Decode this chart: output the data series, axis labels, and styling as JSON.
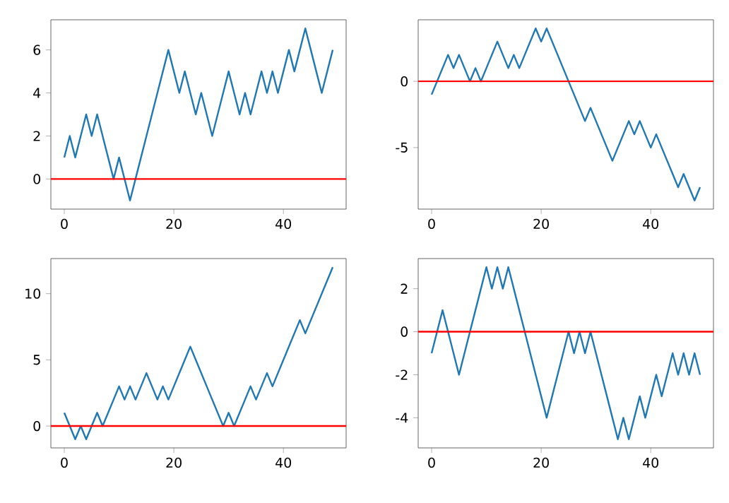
{
  "chart_data": [
    {
      "type": "line",
      "x": [
        0,
        1,
        2,
        3,
        4,
        5,
        6,
        7,
        8,
        9,
        10,
        11,
        12,
        13,
        14,
        15,
        16,
        17,
        18,
        19,
        20,
        21,
        22,
        23,
        24,
        25,
        26,
        27,
        28,
        29,
        30,
        31,
        32,
        33,
        34,
        35,
        36,
        37,
        38,
        39,
        40,
        41,
        42,
        43,
        44,
        45,
        46,
        47,
        48,
        49
      ],
      "xlim": [
        -2.45,
        51.45
      ],
      "xticks": [
        0,
        20,
        40
      ],
      "ylim": [
        -1.4,
        7.4
      ],
      "yticks": [
        0,
        2,
        4,
        6
      ],
      "series": [
        {
          "color": "#1f77b4",
          "values": [
            1,
            2,
            1,
            2,
            3,
            2,
            3,
            2,
            1,
            0,
            1,
            0,
            -1,
            0,
            1,
            2,
            3,
            4,
            5,
            6,
            5,
            4,
            5,
            4,
            3,
            4,
            3,
            2,
            3,
            4,
            5,
            4,
            3,
            4,
            3,
            4,
            5,
            4,
            5,
            4,
            5,
            6,
            5,
            6,
            7,
            6,
            5,
            4,
            5,
            6
          ]
        }
      ],
      "ref_lines": [
        {
          "axis": "y",
          "value": 0,
          "color": "#ff0000"
        }
      ]
    },
    {
      "type": "line",
      "x": [
        0,
        1,
        2,
        3,
        4,
        5,
        6,
        7,
        8,
        9,
        10,
        11,
        12,
        13,
        14,
        15,
        16,
        17,
        18,
        19,
        20,
        21,
        22,
        23,
        24,
        25,
        26,
        27,
        28,
        29,
        30,
        31,
        32,
        33,
        34,
        35,
        36,
        37,
        38,
        39,
        40,
        41,
        42,
        43,
        44,
        45,
        46,
        47,
        48,
        49
      ],
      "xlim": [
        -2.45,
        51.45
      ],
      "xticks": [
        0,
        20,
        40
      ],
      "ylim": [
        -9.65,
        4.65
      ],
      "yticks": [
        -5,
        0
      ],
      "series": [
        {
          "color": "#1f77b4",
          "values": [
            -1,
            0,
            1,
            2,
            1,
            2,
            1,
            0,
            1,
            0,
            1,
            2,
            3,
            2,
            1,
            2,
            1,
            2,
            3,
            4,
            3,
            4,
            3,
            2,
            1,
            0,
            -1,
            -2,
            -3,
            -2,
            -3,
            -4,
            -5,
            -6,
            -5,
            -4,
            -3,
            -4,
            -3,
            -4,
            -5,
            -4,
            -5,
            -6,
            -7,
            -8,
            -7,
            -8,
            -9,
            -8
          ]
        }
      ],
      "ref_lines": [
        {
          "axis": "y",
          "value": 0,
          "color": "#ff0000"
        }
      ]
    },
    {
      "type": "line",
      "x": [
        0,
        1,
        2,
        3,
        4,
        5,
        6,
        7,
        8,
        9,
        10,
        11,
        12,
        13,
        14,
        15,
        16,
        17,
        18,
        19,
        20,
        21,
        22,
        23,
        24,
        25,
        26,
        27,
        28,
        29,
        30,
        31,
        32,
        33,
        34,
        35,
        36,
        37,
        38,
        39,
        40,
        41,
        42,
        43,
        44,
        45,
        46,
        47,
        48,
        49
      ],
      "xlim": [
        -2.45,
        51.45
      ],
      "xticks": [
        0,
        20,
        40
      ],
      "ylim": [
        -1.65,
        12.65
      ],
      "yticks": [
        0,
        5,
        10
      ],
      "series": [
        {
          "color": "#1f77b4",
          "values": [
            1,
            0,
            -1,
            0,
            -1,
            0,
            1,
            0,
            1,
            2,
            3,
            2,
            3,
            2,
            3,
            4,
            3,
            2,
            3,
            2,
            3,
            4,
            5,
            6,
            5,
            4,
            3,
            2,
            1,
            0,
            1,
            0,
            1,
            2,
            3,
            2,
            3,
            4,
            3,
            4,
            5,
            6,
            7,
            8,
            7,
            8,
            9,
            10,
            11,
            12
          ]
        }
      ],
      "ref_lines": [
        {
          "axis": "y",
          "value": 0,
          "color": "#ff0000"
        }
      ]
    },
    {
      "type": "line",
      "x": [
        0,
        1,
        2,
        3,
        4,
        5,
        6,
        7,
        8,
        9,
        10,
        11,
        12,
        13,
        14,
        15,
        16,
        17,
        18,
        19,
        20,
        21,
        22,
        23,
        24,
        25,
        26,
        27,
        28,
        29,
        30,
        31,
        32,
        33,
        34,
        35,
        36,
        37,
        38,
        39,
        40,
        41,
        42,
        43,
        44,
        45,
        46,
        47,
        48,
        49
      ],
      "xlim": [
        -2.45,
        51.45
      ],
      "xticks": [
        0,
        20,
        40
      ],
      "ylim": [
        -5.4,
        3.4
      ],
      "yticks": [
        -4,
        -2,
        0,
        2
      ],
      "series": [
        {
          "color": "#1f77b4",
          "values": [
            -1,
            0,
            1,
            0,
            -1,
            -2,
            -1,
            0,
            1,
            2,
            3,
            2,
            3,
            2,
            3,
            2,
            1,
            0,
            -1,
            -2,
            -3,
            -4,
            -3,
            -2,
            -1,
            0,
            -1,
            0,
            -1,
            0,
            -1,
            -2,
            -3,
            -4,
            -5,
            -4,
            -5,
            -4,
            -3,
            -4,
            -3,
            -2,
            -3,
            -2,
            -1,
            -2,
            -1,
            -2,
            -1,
            -2
          ]
        }
      ],
      "ref_lines": [
        {
          "axis": "y",
          "value": 0,
          "color": "#ff0000"
        }
      ]
    }
  ]
}
